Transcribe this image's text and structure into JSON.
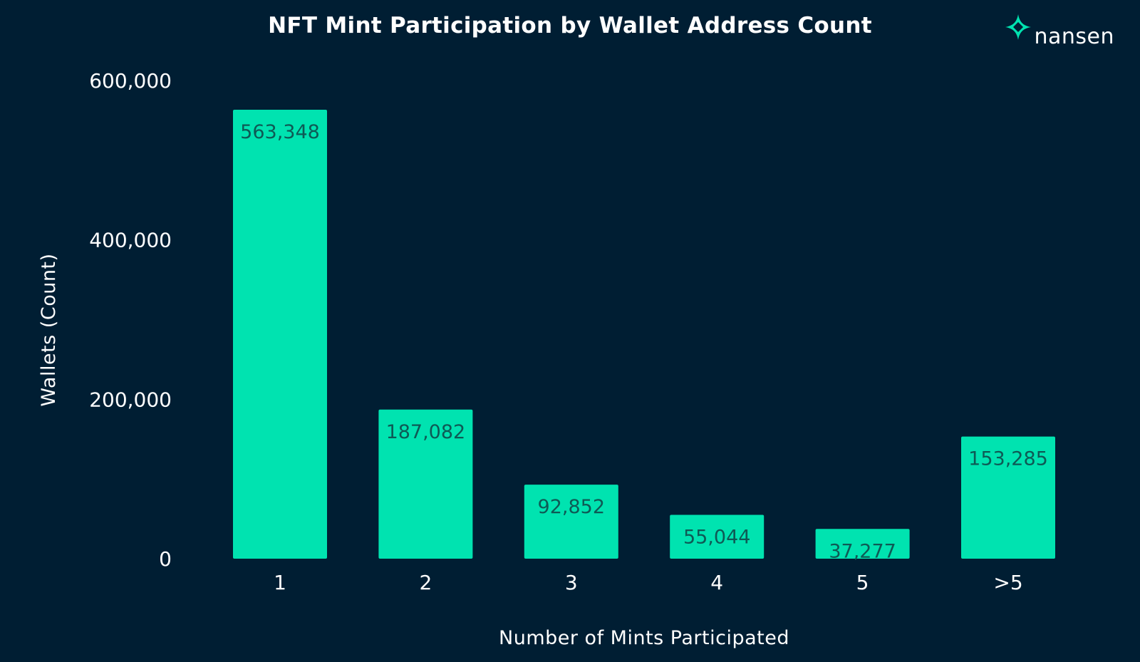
{
  "brand": {
    "name": "nansen",
    "icon": "nansen-logo-icon",
    "color": "#00e3b0"
  },
  "colors": {
    "background": "#001e33",
    "bar": "#00e3b0",
    "label_inside": "#0e5a55",
    "label_outside": "#1c5c66",
    "text": "#ffffff"
  },
  "chart_data": {
    "type": "bar",
    "title": "NFT Mint Participation by Wallet Address Count",
    "xlabel": "Number of Mints Participated",
    "ylabel": "Wallets (Count)",
    "categories": [
      "1",
      "2",
      "3",
      "4",
      "5",
      ">5"
    ],
    "values": [
      563348,
      187082,
      92852,
      55044,
      37277,
      153285
    ],
    "value_labels": [
      "563,348",
      "187,082",
      "92,852",
      "55,044",
      "37,277",
      "153,285"
    ],
    "ylim": [
      0,
      600000
    ],
    "yticks": [
      0,
      200000,
      400000,
      600000
    ],
    "ytick_labels": [
      "0",
      "200,000",
      "400,000",
      "600,000"
    ],
    "grid": false,
    "legend": "none"
  }
}
